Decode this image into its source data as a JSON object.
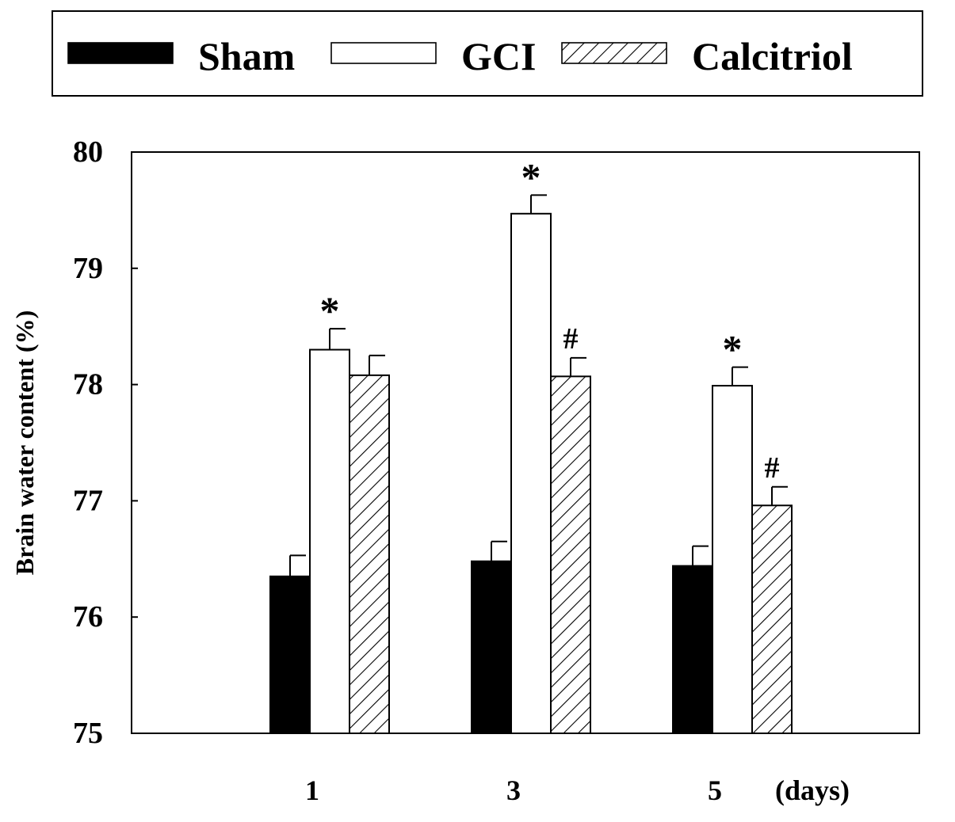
{
  "chart_data": {
    "type": "bar",
    "title": "",
    "xlabel": "",
    "x_unit_label": "(days)",
    "ylabel": "Brain water content (%)",
    "ylim": [
      75,
      80
    ],
    "yticks": [
      "75",
      "76",
      "77",
      "78",
      "79",
      "80"
    ],
    "categories": [
      "1",
      "3",
      "5"
    ],
    "legend": {
      "position": "top",
      "entries": [
        "Sham",
        "GCI",
        "Calcitriol"
      ]
    },
    "series": [
      {
        "name": "Sham",
        "fill": "solid-black",
        "values": [
          76.35,
          76.48,
          76.44
        ],
        "errors": [
          0.18,
          0.17,
          0.17
        ],
        "annotations": [
          "",
          "",
          ""
        ]
      },
      {
        "name": "GCI",
        "fill": "white",
        "values": [
          78.3,
          79.47,
          77.99
        ],
        "errors": [
          0.18,
          0.16,
          0.16
        ],
        "annotations": [
          "*",
          "*",
          "*"
        ]
      },
      {
        "name": "Calcitriol",
        "fill": "diagonal-hatch",
        "values": [
          78.08,
          78.07,
          76.96
        ],
        "errors": [
          0.17,
          0.16,
          0.16
        ],
        "annotations": [
          "",
          "#",
          "#"
        ]
      }
    ],
    "colors": {
      "ink": "#000000",
      "background": "#ffffff"
    }
  }
}
